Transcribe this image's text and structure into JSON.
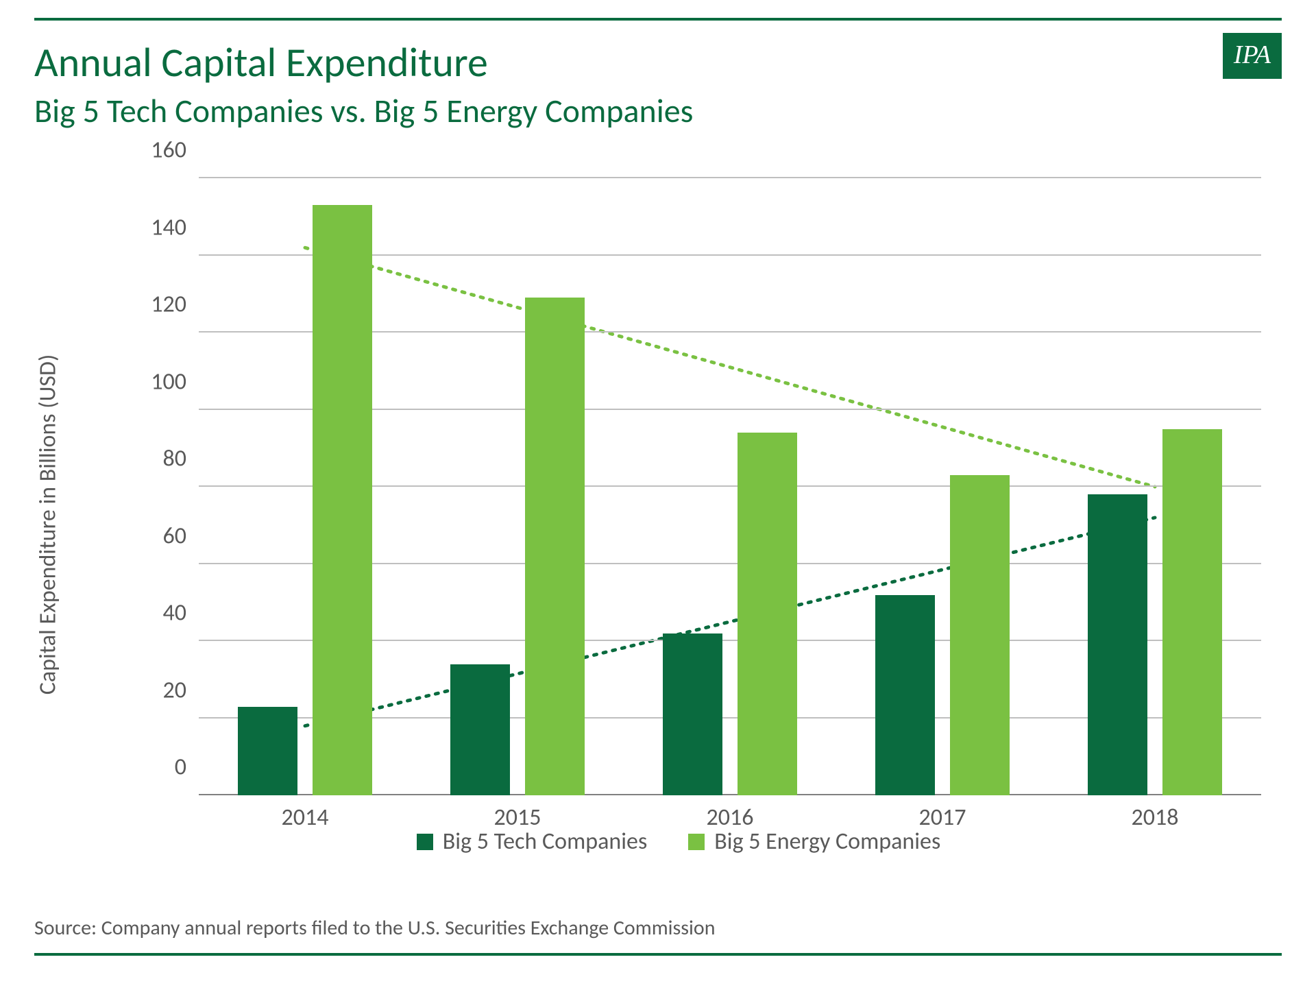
{
  "logo_text": "IPA",
  "title": "Annual Capital Expenditure",
  "subtitle": "Big 5 Tech Companies vs. Big 5 Energy Companies",
  "source": "Source: Company annual reports filed to the U.S. Securities Exchange Commission",
  "chart": {
    "type": "grouped-bar",
    "ylabel": "Capital Expenditure in Billions (USD)",
    "ylim": [
      0,
      160
    ],
    "ytick_step": 20,
    "yticks": [
      0,
      20,
      40,
      60,
      80,
      100,
      120,
      140,
      160
    ],
    "categories": [
      "2014",
      "2015",
      "2016",
      "2017",
      "2018"
    ],
    "series": [
      {
        "name": "Big 5 Tech Companies",
        "color": "#0a6b3f",
        "values": [
          23,
          34,
          42,
          52,
          78
        ]
      },
      {
        "name": "Big 5 Energy Companies",
        "color": "#7ac142",
        "values": [
          153,
          129,
          94,
          83,
          95
        ]
      }
    ],
    "trendlines": [
      {
        "color": "#0a6b3f",
        "dash": "4,10",
        "width": 5,
        "start_y": 18,
        "end_y": 72
      },
      {
        "color": "#7ac142",
        "dash": "4,10",
        "width": 5,
        "start_y": 142,
        "end_y": 80
      }
    ],
    "grid_color": "#bfbfbf",
    "axis_color": "#808080",
    "text_color": "#595959",
    "group_width_pct": 12.5,
    "bar_width_pct": 5.6,
    "bar_gap_pct": 1.4,
    "label_fontsize": 34,
    "tick_fontsize": 34
  },
  "colors": {
    "brand_green": "#0a6b3f",
    "light_green": "#7ac142",
    "background": "#ffffff"
  }
}
